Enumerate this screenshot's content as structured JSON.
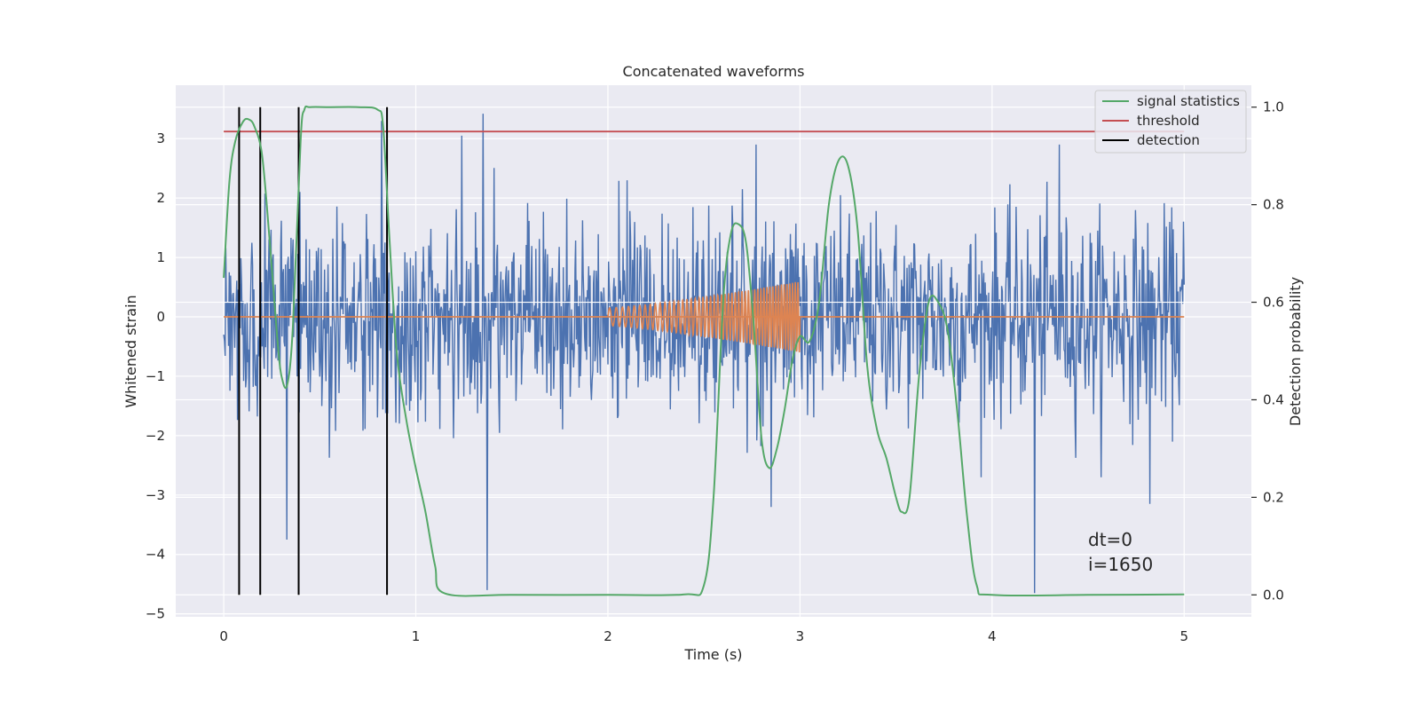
{
  "chart_data": {
    "type": "line",
    "title": "Concatenated waveforms",
    "xlabel": "Time (s)",
    "ylabel": "Whitened strain",
    "ylabel_right": "Detection probability",
    "xlim": [
      -0.25,
      5.35
    ],
    "ylim": [
      -5.05,
      3.9
    ],
    "ylim_right": [
      -0.045,
      1.045
    ],
    "x_ticks": [
      0,
      1,
      2,
      3,
      4,
      5
    ],
    "x_tick_labels": [
      "0",
      "1",
      "2",
      "3",
      "4",
      "5"
    ],
    "y_ticks": [
      -5,
      -4,
      -3,
      -2,
      -1,
      0,
      1,
      2,
      3
    ],
    "y_tick_labels": [
      "−5",
      "−4",
      "−3",
      "−2",
      "−1",
      "0",
      "1",
      "2",
      "3"
    ],
    "y_right_ticks": [
      0.0,
      0.2,
      0.4,
      0.6,
      0.8,
      1.0
    ],
    "y_right_tick_labels": [
      "0.0",
      "0.2",
      "0.4",
      "0.6",
      "0.8",
      "1.0"
    ],
    "grid": true,
    "legend_position": "top-right",
    "colors": {
      "background": "#eaeaf2",
      "grid": "#ffffff",
      "strain": "#4c72b0",
      "injection": "#dd8452",
      "signal_statistics": "#55a868",
      "threshold": "#c44e52",
      "detection": "#000000"
    },
    "series": [
      {
        "name": "",
        "axis": "left",
        "kind": "whitened-noise",
        "x_range": [
          0,
          5
        ],
        "envelope": 2.3,
        "spikes": [
          [
            0.33,
            -3.75
          ],
          [
            1.35,
            3.42
          ],
          [
            1.37,
            -4.6
          ],
          [
            2.85,
            -3.2
          ],
          [
            4.22,
            -4.65
          ],
          [
            4.82,
            -3.15
          ],
          [
            0.82,
            3.3
          ],
          [
            2.1,
            2.3
          ],
          [
            1.24,
            3.05
          ],
          [
            2.77,
            2.9
          ],
          [
            4.35,
            2.9
          ]
        ]
      },
      {
        "name": "",
        "axis": "left",
        "kind": "chirp",
        "x_range": [
          2.0,
          3.0
        ],
        "amplitude_start": 0.15,
        "amplitude_end": 0.6
      },
      {
        "name": "signal statistics",
        "axis": "right",
        "x": [
          0.0,
          0.03,
          0.06,
          0.1,
          0.13,
          0.16,
          0.2,
          0.24,
          0.28,
          0.3,
          0.33,
          0.36,
          0.4,
          0.42,
          0.45,
          0.55,
          0.7,
          0.8,
          0.83,
          0.86,
          0.9,
          0.95,
          1.0,
          1.05,
          1.1,
          1.15,
          1.5,
          2.0,
          2.4,
          2.5,
          2.55,
          2.6,
          2.64,
          2.68,
          2.72,
          2.76,
          2.8,
          2.84,
          2.88,
          2.92,
          2.96,
          3.0,
          3.05,
          3.1,
          3.15,
          3.2,
          3.25,
          3.3,
          3.35,
          3.4,
          3.45,
          3.5,
          3.53,
          3.57,
          3.62,
          3.67,
          3.72,
          3.77,
          3.82,
          3.87,
          3.92,
          4.0,
          4.5,
          5.0
        ],
        "y": [
          0.65,
          0.85,
          0.93,
          0.97,
          0.975,
          0.96,
          0.9,
          0.72,
          0.52,
          0.45,
          0.43,
          0.55,
          0.93,
          0.995,
          1.0,
          1.0,
          1.0,
          0.995,
          0.96,
          0.75,
          0.5,
          0.36,
          0.26,
          0.17,
          0.06,
          0.003,
          0.0,
          0.0,
          0.001,
          0.02,
          0.2,
          0.6,
          0.74,
          0.76,
          0.72,
          0.55,
          0.32,
          0.26,
          0.3,
          0.38,
          0.48,
          0.53,
          0.52,
          0.6,
          0.8,
          0.89,
          0.88,
          0.75,
          0.47,
          0.34,
          0.28,
          0.2,
          0.17,
          0.2,
          0.45,
          0.6,
          0.6,
          0.54,
          0.37,
          0.16,
          0.02,
          0.0,
          0.0,
          0.001
        ]
      },
      {
        "name": "threshold",
        "axis": "right",
        "x": [
          0,
          5
        ],
        "y": [
          0.95,
          0.95
        ]
      }
    ],
    "detections": {
      "name": "detection",
      "x": [
        0.08,
        0.19,
        0.39,
        0.85
      ],
      "y_range": [
        0.0,
        1.0
      ]
    },
    "legend": [
      "signal statistics",
      "threshold",
      "detection"
    ],
    "annotations": [
      "dt=0",
      "i=1650"
    ]
  }
}
